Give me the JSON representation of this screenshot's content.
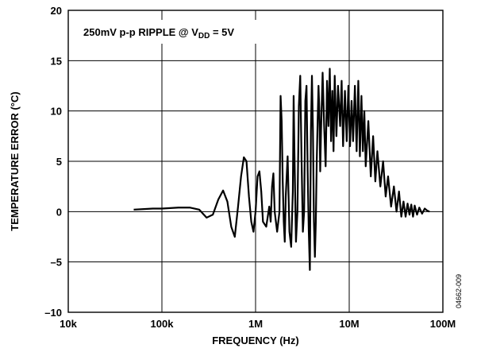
{
  "chart_data": {
    "type": "line",
    "xlabel": "FREQUENCY (Hz)",
    "ylabel": "TEMPERATURE ERROR (°C)",
    "x_scale": "log",
    "xlim": [
      10000,
      100000000
    ],
    "ylim": [
      -10,
      20
    ],
    "x_ticks": [
      10000,
      100000,
      1000000,
      10000000,
      100000000
    ],
    "x_tick_labels": [
      "10k",
      "100k",
      "1M",
      "10M",
      "100M"
    ],
    "y_ticks": [
      -10,
      -5,
      0,
      5,
      10,
      15,
      20
    ],
    "y_tick_labels": [
      "–10",
      "–5",
      "0",
      "5",
      "10",
      "15",
      "20"
    ],
    "grid": true,
    "annotation": {
      "text_main": "250mV p-p RIPPLE @ V",
      "text_sub": "DD",
      "text_tail": " = 5V"
    },
    "figure_id": "04662-009",
    "series": [
      {
        "x": [
          50000,
          80000,
          100000,
          150000,
          200000,
          250000,
          300000,
          350000,
          400000,
          450000,
          500000,
          550000,
          600000,
          650000,
          700000,
          750000,
          800000,
          850000,
          900000,
          950000,
          1000000,
          1050000,
          1100000,
          1150000,
          1200000,
          1300000,
          1400000,
          1450000,
          1500000,
          1550000,
          1600000,
          1700000,
          1800000,
          1850000,
          1900000,
          1950000,
          2000000,
          2050000,
          2100000,
          2200000,
          2300000,
          2400000,
          2500000,
          2550000,
          2600000,
          2700000,
          2800000,
          2900000,
          3000000,
          3100000,
          3200000,
          3300000,
          3400000,
          3500000,
          3600000,
          3700000,
          3800000,
          3900000,
          4000000,
          4100000,
          4200000,
          4300000,
          4400000,
          4500000,
          4600000,
          4700000,
          4800000,
          4900000,
          5000000,
          5200000,
          5400000,
          5600000,
          5800000,
          6000000,
          6200000,
          6400000,
          6600000,
          6800000,
          7000000,
          7300000,
          7600000,
          8000000,
          8300000,
          8600000,
          9000000,
          9400000,
          9800000,
          10200000,
          10600000,
          11000000,
          11500000,
          12000000,
          12500000,
          13000000,
          13500000,
          14000000,
          14500000,
          15000000,
          16000000,
          17000000,
          18000000,
          19000000,
          20000000,
          21500000,
          23000000,
          24500000,
          26000000,
          28000000,
          30000000,
          32000000,
          34000000,
          36000000,
          38000000,
          40000000,
          42000000,
          44000000,
          46000000,
          48000000,
          50000000,
          53000000,
          56000000,
          60000000,
          64000000,
          68000000,
          72000000
        ],
        "y": [
          0.2,
          0.3,
          0.3,
          0.4,
          0.4,
          0.2,
          -0.6,
          -0.3,
          1.2,
          2.1,
          1.0,
          -1.5,
          -2.5,
          0.5,
          3.5,
          5.4,
          5.0,
          1.5,
          -1.0,
          -2.0,
          0.0,
          3.5,
          4.0,
          2.0,
          -1.0,
          -1.5,
          0.5,
          -1.0,
          2.5,
          3.8,
          0.0,
          -2.0,
          0.0,
          11.5,
          9.0,
          3.0,
          -1.0,
          -3.0,
          1.5,
          5.5,
          -2.0,
          -3.5,
          2.0,
          11.5,
          6.0,
          -3.0,
          0.0,
          10.5,
          13.5,
          5.0,
          -2.0,
          0.0,
          11.0,
          12.5,
          4.0,
          -2.0,
          -5.8,
          8.0,
          13.5,
          8.0,
          -1.0,
          -4.5,
          -1.0,
          5.0,
          9.0,
          12.5,
          10.0,
          4.0,
          8.0,
          13.8,
          8.5,
          4.5,
          13.0,
          8.5,
          14.2,
          7.0,
          12.0,
          6.0,
          13.5,
          7.5,
          12.5,
          8.5,
          13.0,
          6.5,
          12.0,
          7.0,
          12.5,
          6.5,
          11.0,
          7.0,
          12.5,
          6.0,
          13.0,
          5.5,
          11.5,
          6.0,
          10.0,
          4.5,
          9.0,
          3.5,
          7.5,
          3.0,
          6.0,
          2.5,
          5.0,
          1.5,
          3.5,
          0.5,
          2.5,
          0.0,
          2.0,
          -0.5,
          1.0,
          -0.5,
          0.8,
          -0.3,
          0.7,
          -0.5,
          0.6,
          -0.3,
          0.4,
          -0.2,
          0.3,
          0.1,
          0.0
        ]
      }
    ]
  }
}
